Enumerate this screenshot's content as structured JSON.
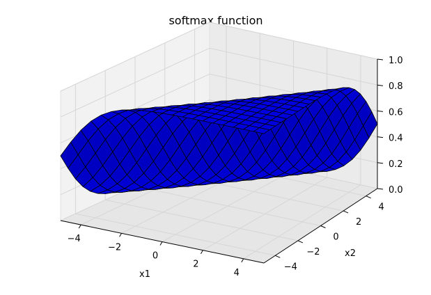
{
  "chart_data": {
    "type": "surface",
    "title": "softmax function",
    "xlabel": "x1",
    "ylabel": "x2",
    "zlabel": "",
    "function": "z = exp(x1) / (exp(x1) + exp(x2))",
    "x_range": [
      -5,
      5
    ],
    "y_range": [
      -5,
      5
    ],
    "z_range": [
      0,
      1
    ],
    "grid_step": 0.5,
    "x_ticks": [
      "−4",
      "−2",
      "0",
      "2",
      "4"
    ],
    "y_ticks": [
      "−4",
      "−2",
      "0",
      "2",
      "4"
    ],
    "z_ticks": [
      "0.0",
      "0.2",
      "0.4",
      "0.6",
      "0.8",
      "1.0"
    ],
    "grid": true,
    "surface_color": "#0000ff",
    "edge_color": "#000000"
  }
}
